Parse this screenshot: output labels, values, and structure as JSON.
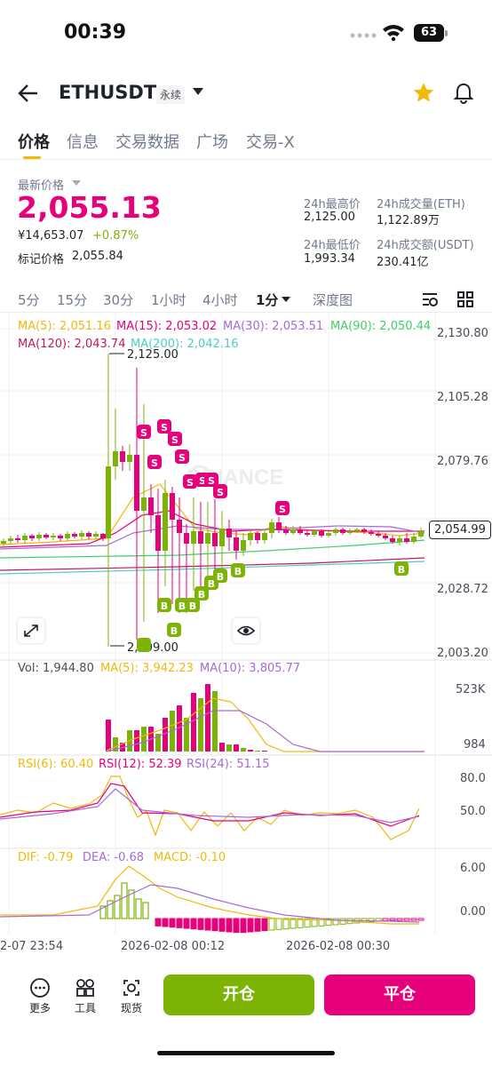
{
  "status": {
    "time": "00:39",
    "battery": "63"
  },
  "nav": {
    "symbol": "ETHUSDT",
    "contract_type": "永续"
  },
  "tabs": [
    "价格",
    "信息",
    "交易数据",
    "广场",
    "交易-X"
  ],
  "price": {
    "latest_label": "最新价格",
    "last": "2,055.13",
    "cny": "¥14,653.07",
    "change": "+0.87%",
    "mark_label": "标记价格",
    "mark": "2,055.84"
  },
  "stats": {
    "high_label": "24h最高价",
    "high": "2,125.00",
    "low_label": "24h最低价",
    "low": "1,993.34",
    "vol_label": "24h成交量(ETH)",
    "vol": "1,122.89万",
    "amount_label": "24h成交额(USDT)",
    "amount": "230.41亿"
  },
  "intervals": [
    "5分",
    "15分",
    "30分",
    "1小时",
    "4小时",
    "1分",
    "深度图"
  ],
  "ma": {
    "ma5": "MA(5): 2,051.16",
    "ma15": "MA(15): 2,053.02",
    "ma30": "MA(30): 2,053.51",
    "ma90": "MA(90): 2,050.44",
    "ma120": "MA(120): 2,043.74",
    "ma200": "MA(200): 2,042.16"
  },
  "price_axis": [
    "2,130.80",
    "2,105.28",
    "2,079.76",
    "2,054.99",
    "2,028.72",
    "2,003.20"
  ],
  "annotations": {
    "high": "2,125.00",
    "low": "2,009.00"
  },
  "watermark": "BINANCE",
  "volume": {
    "vol": "Vol: 1,944.80",
    "ma5": "MA(5): 3,942.23",
    "ma10": "MA(10): 3,805.77",
    "axis_top": "523K",
    "axis_bottom": "984"
  },
  "rsi": {
    "rsi6": "RSI(6): 60.40",
    "rsi12": "RSI(12): 52.39",
    "rsi24": "RSI(24): 51.15",
    "axis_top": "80.0",
    "axis_mid": "50.0"
  },
  "macd": {
    "dif": "DIF: -0.79",
    "dea": "DEA: -0.68",
    "macd": "MACD: -0.10",
    "axis_top": "6.00",
    "axis_bottom": "0.00"
  },
  "time_axis": [
    "2-07 23:54",
    "2026-02-08 00:12",
    "2026-02-08 00:30"
  ],
  "bottom": {
    "more": "更多",
    "tools": "工具",
    "spot": "现货",
    "open": "开仓",
    "close": "平仓"
  },
  "colors": {
    "up": "#7cb305",
    "down": "#e6007a",
    "accent": "#f0b90b"
  }
}
